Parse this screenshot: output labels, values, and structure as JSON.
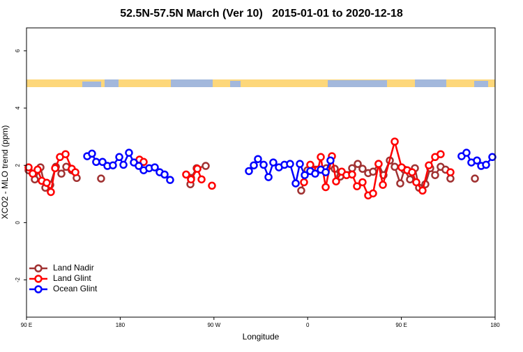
{
  "chart_data": {
    "type": "line",
    "title": "52.5N-57.5N March (Ver 10)   2015-01-01 to 2020-12-18",
    "x_label": "Longitude",
    "y_label": "XCO2 - MLO trend (ppm)",
    "xlim": [
      90,
      540
    ],
    "ylim": [
      -3.3,
      6.8
    ],
    "xticks": [
      {
        "value": 90,
        "label": "90 E"
      },
      {
        "value": 180,
        "label": "180"
      },
      {
        "value": 270,
        "label": "90 W"
      },
      {
        "value": 360,
        "label": "0"
      },
      {
        "value": 450,
        "label": "90 E"
      },
      {
        "value": 540,
        "label": "180"
      }
    ],
    "yticks": [
      -2,
      0,
      2,
      4,
      6
    ],
    "legend": "bottomleft",
    "series": [
      {
        "name": "Land Nadir",
        "color": "#a03232",
        "x": [
          92.0,
          98.0,
          103.4,
          108.1,
          112.8,
          118.2,
          123.5,
          128.2,
          133.5,
          138.2,
          null,
          161.6,
          null,
          247.4,
          248.0,
          253.4,
          262.1,
          null,
          353.8,
          359.9,
          367.2,
          377.9,
          386.0,
          391.3,
          397.3,
          402.7,
          408.1,
          412.7,
          418.1,
          422.8,
          428.1,
          432.8,
          438.9,
          443.6,
          448.9,
          452.9,
          458.3,
          463.0,
          467.0,
          473.0,
          477.7,
          482.4,
          487.7,
          492.4,
          497.1,
          null,
          520.6
        ],
        "values": [
          1.83,
          1.51,
          1.93,
          1.22,
          1.32,
          1.95,
          1.71,
          1.95,
          1.83,
          1.56,
          null,
          1.54,
          null,
          1.34,
          1.56,
          1.9,
          1.98,
          null,
          1.12,
          1.83,
          1.85,
          1.9,
          1.88,
          1.61,
          1.66,
          1.9,
          2.05,
          1.88,
          1.73,
          1.78,
          2.05,
          1.66,
          2.17,
          1.95,
          1.37,
          1.85,
          1.51,
          1.9,
          1.22,
          1.34,
          1.9,
          1.66,
          1.95,
          1.85,
          1.54,
          null,
          1.54
        ]
      },
      {
        "name": "Land Glint",
        "color": "#ff0000",
        "x": [
          92.0,
          96.0,
          100.7,
          104.7,
          109.4,
          113.4,
          117.5,
          122.1,
          127.5,
          133.5,
          136.9,
          null,
          198.5,
          202.5,
          null,
          243.3,
          248.0,
          254.1,
          258.1,
          null,
          268.1,
          null,
          356.5,
          362.5,
          369.9,
          372.6,
          377.3,
          383.3,
          387.3,
          392.7,
          397.3,
          402.7,
          407.4,
          412.7,
          418.1,
          422.8,
          428.1,
          432.2,
          443.6,
          450.2,
          455.6,
          460.3,
          464.3,
          470.3,
          476.4,
          482.4,
          487.7,
          null,
          497.1
        ],
        "values": [
          1.93,
          1.71,
          1.85,
          1.46,
          1.39,
          1.07,
          1.9,
          2.29,
          2.39,
          1.88,
          1.76,
          null,
          2.2,
          2.12,
          null,
          1.68,
          1.51,
          1.88,
          1.51,
          null,
          1.29,
          null,
          1.41,
          2.02,
          1.85,
          2.29,
          1.24,
          2.32,
          1.44,
          1.78,
          1.66,
          1.68,
          1.27,
          1.41,
          0.95,
          1.02,
          2.05,
          1.32,
          2.83,
          1.93,
          1.83,
          1.76,
          1.41,
          1.12,
          2.0,
          2.29,
          2.39,
          null,
          1.76
        ]
      },
      {
        "name": "Ocean Glint",
        "color": "#0000ff",
        "x": [
          148.3,
          152.9,
          156.9,
          163.0,
          167.7,
          173.0,
          179.1,
          183.1,
          188.4,
          193.1,
          197.8,
          202.5,
          207.8,
          213.2,
          217.9,
          222.6,
          227.9,
          null,
          303.6,
          308.3,
          312.3,
          317.7,
          322.4,
          327.0,
          332.4,
          337.7,
          343.1,
          348.5,
          352.5,
          357.2,
          362.5,
          367.2,
          372.6,
          377.3,
          381.9,
          null,
          507.8,
          512.5,
          517.2,
          522.6,
          526.6,
          531.3,
          537.3
        ],
        "values": [
          2.32,
          2.41,
          2.12,
          2.12,
          1.98,
          2.0,
          2.29,
          2.02,
          2.44,
          2.1,
          1.98,
          1.83,
          1.9,
          1.93,
          1.76,
          1.68,
          1.49,
          null,
          1.8,
          2.0,
          2.22,
          2.02,
          1.59,
          2.1,
          1.93,
          2.02,
          2.05,
          1.37,
          2.05,
          1.66,
          1.8,
          1.71,
          1.85,
          1.76,
          2.17,
          null,
          2.32,
          2.44,
          2.1,
          2.17,
          1.98,
          2.02,
          2.29
        ]
      }
    ]
  }
}
